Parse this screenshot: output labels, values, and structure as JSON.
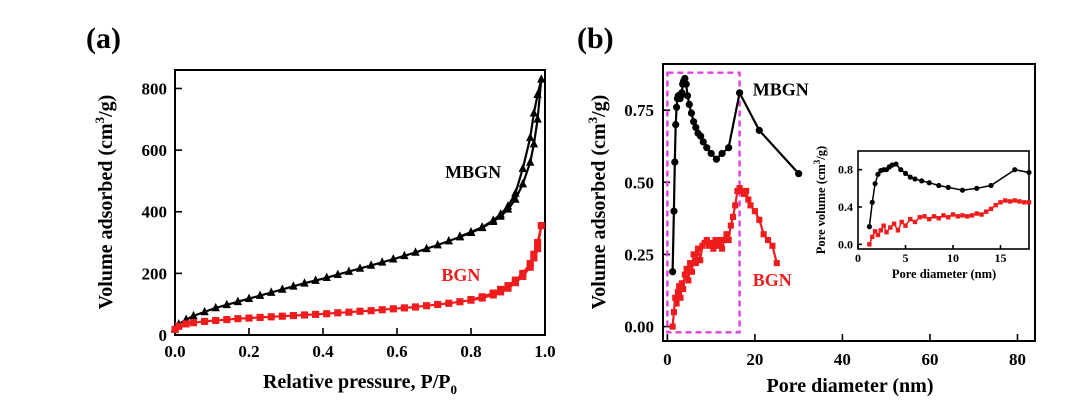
{
  "chart_data": [
    {
      "panel": "(a)",
      "type": "line",
      "xlabel": "Relative pressure, P/P",
      "xlabel_sub": "0",
      "ylabel": "Volume adsorbed  (cm",
      "ylabel_sup": "3",
      "ylabel_tail": "/g)",
      "xlim": [
        0,
        1.0
      ],
      "ylim": [
        0,
        860
      ],
      "xticks": [
        0.0,
        0.2,
        0.4,
        0.6,
        0.8,
        1.0
      ],
      "xtick_labels": [
        "0.0",
        "0.2",
        "0.4",
        "0.6",
        "0.8",
        "1.0"
      ],
      "yticks": [
        0,
        200,
        400,
        600,
        800
      ],
      "ytick_labels": [
        "0",
        "200",
        "400",
        "600",
        "800"
      ],
      "grid": false,
      "series": [
        {
          "name": "MBGN",
          "color": "#000000",
          "marker": "triangle",
          "x": [
            0.0,
            0.01,
            0.03,
            0.05,
            0.08,
            0.11,
            0.14,
            0.17,
            0.2,
            0.23,
            0.26,
            0.29,
            0.32,
            0.35,
            0.38,
            0.41,
            0.44,
            0.47,
            0.5,
            0.53,
            0.56,
            0.59,
            0.62,
            0.65,
            0.68,
            0.71,
            0.74,
            0.77,
            0.8,
            0.83,
            0.86,
            0.88,
            0.9,
            0.92,
            0.94,
            0.96,
            0.97,
            0.98,
            0.99,
            0.98,
            0.97,
            0.96,
            0.94,
            0.92,
            0.9,
            0.88,
            0.86,
            0.83,
            0.8,
            0.77
          ],
          "y": [
            20,
            35,
            50,
            62,
            75,
            88,
            98,
            108,
            118,
            128,
            138,
            148,
            158,
            168,
            177,
            186,
            196,
            206,
            216,
            226,
            236,
            246,
            257,
            268,
            280,
            292,
            305,
            318,
            332,
            348,
            368,
            385,
            408,
            440,
            490,
            560,
            620,
            700,
            830,
            780,
            720,
            640,
            540,
            460,
            418,
            392,
            372,
            350,
            334,
            320
          ]
        },
        {
          "name": "BGN",
          "color": "#ee1c1c",
          "marker": "square",
          "x": [
            0.0,
            0.01,
            0.03,
            0.05,
            0.08,
            0.11,
            0.14,
            0.17,
            0.2,
            0.23,
            0.26,
            0.29,
            0.32,
            0.35,
            0.38,
            0.41,
            0.44,
            0.47,
            0.5,
            0.53,
            0.56,
            0.59,
            0.62,
            0.65,
            0.68,
            0.71,
            0.74,
            0.77,
            0.8,
            0.83,
            0.86,
            0.88,
            0.9,
            0.92,
            0.94,
            0.96,
            0.97,
            0.98,
            0.99,
            0.98,
            0.97,
            0.96,
            0.94,
            0.92,
            0.9,
            0.88,
            0.86,
            0.83,
            0.8
          ],
          "y": [
            18,
            28,
            36,
            40,
            44,
            47,
            50,
            53,
            55,
            57,
            59,
            61,
            63,
            65,
            67,
            69,
            72,
            74,
            77,
            79,
            82,
            85,
            88,
            91,
            95,
            99,
            103,
            108,
            113,
            120,
            130,
            140,
            152,
            170,
            190,
            220,
            250,
            280,
            355,
            300,
            262,
            232,
            200,
            178,
            160,
            148,
            136,
            124,
            115
          ]
        }
      ],
      "annotations": [
        {
          "text": "MBGN",
          "color": "#000000",
          "x": 0.73,
          "y": 510
        },
        {
          "text": "BGN",
          "color": "#ee1c1c",
          "x": 0.72,
          "y": 175
        }
      ]
    },
    {
      "panel": "(b)",
      "type": "line",
      "xlabel": "Pore diameter (nm)",
      "ylabel": "Volume adsorbed  (cm",
      "ylabel_sup": "3",
      "ylabel_tail": "/g)",
      "xlim": [
        -1,
        84
      ],
      "ylim": [
        -0.05,
        0.91
      ],
      "xticks": [
        0,
        20,
        40,
        60,
        80
      ],
      "xtick_labels": [
        "0",
        "20",
        "40",
        "60",
        "80"
      ],
      "yticks": [
        0.0,
        0.25,
        0.5,
        0.75
      ],
      "ytick_labels": [
        "0.00",
        "0.25",
        "0.50",
        "0.75"
      ],
      "grid": false,
      "highlight_box": {
        "x0": 0,
        "x1": 16.5,
        "y0": -0.02,
        "y1": 0.88,
        "color": "#e040e0",
        "style": "dashed"
      },
      "series": [
        {
          "name": "MBGN",
          "color": "#000000",
          "marker": "circle",
          "x": [
            1.2,
            1.5,
            1.7,
            1.9,
            2.1,
            2.3,
            2.5,
            2.7,
            2.9,
            3.1,
            3.3,
            3.5,
            3.7,
            4.0,
            4.3,
            4.6,
            5.0,
            5.5,
            6.0,
            6.5,
            7.0,
            7.6,
            8.2,
            9.0,
            10.0,
            11.2,
            12.5,
            14.0,
            16.5,
            21.0,
            30.0
          ],
          "y": [
            0.19,
            0.4,
            0.57,
            0.7,
            0.76,
            0.79,
            0.8,
            0.8,
            0.79,
            0.8,
            0.81,
            0.84,
            0.85,
            0.86,
            0.84,
            0.8,
            0.77,
            0.74,
            0.71,
            0.69,
            0.67,
            0.66,
            0.64,
            0.62,
            0.6,
            0.58,
            0.6,
            0.62,
            0.81,
            0.68,
            0.53
          ]
        },
        {
          "name": "BGN",
          "color": "#ee1c1c",
          "marker": "square",
          "x": [
            1.2,
            1.5,
            1.8,
            2.1,
            2.4,
            2.7,
            3.0,
            3.3,
            3.6,
            4.0,
            4.4,
            4.8,
            5.2,
            5.6,
            6.0,
            6.5,
            7.0,
            7.5,
            8.0,
            8.5,
            9.0,
            9.5,
            10.0,
            10.5,
            11.0,
            11.5,
            12.0,
            12.5,
            13.0,
            13.5,
            14.0,
            14.5,
            15.0,
            15.5,
            16.0,
            16.5,
            17.0,
            17.5,
            18.0,
            18.5,
            19.0,
            20.0,
            21.0,
            22.0,
            23.0,
            24.0,
            25.0
          ],
          "y": [
            0.0,
            0.05,
            0.1,
            0.08,
            0.12,
            0.14,
            0.1,
            0.15,
            0.13,
            0.18,
            0.2,
            0.16,
            0.22,
            0.19,
            0.25,
            0.22,
            0.27,
            0.23,
            0.28,
            0.29,
            0.3,
            0.28,
            0.29,
            0.27,
            0.3,
            0.28,
            0.3,
            0.27,
            0.3,
            0.32,
            0.3,
            0.35,
            0.38,
            0.42,
            0.47,
            0.48,
            0.47,
            0.46,
            0.47,
            0.44,
            0.42,
            0.4,
            0.37,
            0.32,
            0.3,
            0.28,
            0.22
          ]
        }
      ],
      "annotations": [
        {
          "text": "MBGN",
          "color": "#000000",
          "x": 19.5,
          "y": 0.8
        },
        {
          "text": "BGN",
          "color": "#ee1c1c",
          "x": 19.5,
          "y": 0.14
        }
      ]
    },
    {
      "panel": "(b) inset",
      "type": "line",
      "xlabel": "Pore diameter (nm)",
      "ylabel": "Pore volume (cm",
      "ylabel_sup": "3",
      "ylabel_tail": "/g)",
      "xlim": [
        0,
        18
      ],
      "ylim": [
        -0.05,
        1.0
      ],
      "xticks": [
        0,
        5,
        10,
        15
      ],
      "xtick_labels": [
        "0",
        "5",
        "10",
        "15"
      ],
      "yticks": [
        0.0,
        0.4,
        0.8
      ],
      "ytick_labels": [
        "0.0",
        "0.4",
        "0.8"
      ],
      "grid": false,
      "series": [
        {
          "name": "MBGN",
          "color": "#000000",
          "marker": "circle",
          "x": [
            1.2,
            1.5,
            1.8,
            2.1,
            2.4,
            2.7,
            3.0,
            3.3,
            3.6,
            4.0,
            4.5,
            5.0,
            5.5,
            6.0,
            6.7,
            7.5,
            8.5,
            9.5,
            11.0,
            12.5,
            14.0,
            16.5,
            18.0
          ],
          "y": [
            0.19,
            0.45,
            0.65,
            0.75,
            0.79,
            0.8,
            0.8,
            0.83,
            0.85,
            0.86,
            0.8,
            0.76,
            0.72,
            0.7,
            0.68,
            0.66,
            0.63,
            0.61,
            0.58,
            0.6,
            0.63,
            0.8,
            0.77
          ]
        },
        {
          "name": "BGN",
          "color": "#ee1c1c",
          "marker": "square",
          "x": [
            1.2,
            1.5,
            1.8,
            2.1,
            2.4,
            2.7,
            3.0,
            3.4,
            3.8,
            4.2,
            4.6,
            5.0,
            5.5,
            6.0,
            6.5,
            7.0,
            7.5,
            8.0,
            8.5,
            9.0,
            9.5,
            10.0,
            10.5,
            11.0,
            11.5,
            12.0,
            12.5,
            13.0,
            13.5,
            14.0,
            14.5,
            15.0,
            15.5,
            16.0,
            16.5,
            17.0,
            17.5,
            18.0
          ],
          "y": [
            0.0,
            0.08,
            0.14,
            0.1,
            0.15,
            0.2,
            0.13,
            0.18,
            0.22,
            0.15,
            0.24,
            0.2,
            0.27,
            0.24,
            0.29,
            0.3,
            0.27,
            0.3,
            0.28,
            0.31,
            0.29,
            0.32,
            0.3,
            0.31,
            0.3,
            0.31,
            0.33,
            0.32,
            0.35,
            0.38,
            0.42,
            0.45,
            0.47,
            0.46,
            0.47,
            0.46,
            0.45,
            0.45
          ]
        }
      ],
      "annotations": []
    }
  ]
}
